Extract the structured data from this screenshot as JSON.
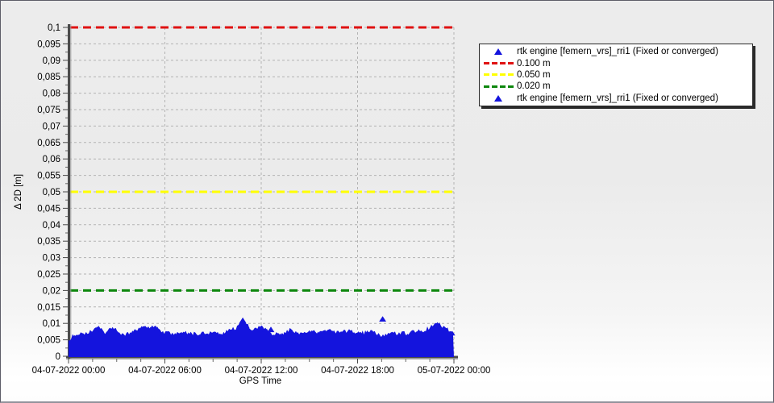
{
  "window": {
    "bg_top": "#ececec",
    "bg_bottom": "#ffffff",
    "border_color": "#5d5d68"
  },
  "chart_data": {
    "type": "scatter",
    "title": "",
    "xlabel": "GPS Time",
    "ylabel": "Δ 2D [m]",
    "ylim": [
      0,
      0.1
    ],
    "y_tick_step": 0.005,
    "grid": "dashed",
    "decimal_separator_axis": ",",
    "y_tick_labels": [
      "0",
      "0,005",
      "0,01",
      "0,015",
      "0,02",
      "0,025",
      "0,03",
      "0,035",
      "0,04",
      "0,045",
      "0,05",
      "0,055",
      "0,06",
      "0,065",
      "0,07",
      "0,075",
      "0,08",
      "0,085",
      "0,09",
      "0,095",
      "0,1"
    ],
    "x_tick_labels": [
      "04-07-2022 00:00",
      "04-07-2022 06:00",
      "04-07-2022 12:00",
      "04-07-2022 18:00",
      "05-07-2022 00:00"
    ],
    "thresholds": [
      {
        "label": "0.100 m",
        "value": 0.1,
        "color": "#e01212"
      },
      {
        "label": "0.050 m",
        "value": 0.05,
        "color": "#ffff00"
      },
      {
        "label": "0.020 m",
        "value": 0.02,
        "color": "#0c870c"
      }
    ],
    "series": [
      {
        "name": "rtk engine [femern_vrs]_rri1 (Fixed or converged)",
        "marker": "triangle",
        "color": "#1414dd",
        "band_range_m": [
          0,
          0.01
        ],
        "description": "dense noise band of fixed/converged RTK 2D deviations hugging 0–0.008 m for full 24 h",
        "envelope": [
          [
            0.0,
            0.0048
          ],
          [
            0.015,
            0.0066
          ],
          [
            0.05,
            0.007
          ],
          [
            0.075,
            0.0086
          ],
          [
            0.095,
            0.0074
          ],
          [
            0.115,
            0.0085
          ],
          [
            0.145,
            0.0064
          ],
          [
            0.175,
            0.008
          ],
          [
            0.195,
            0.0087
          ],
          [
            0.225,
            0.009
          ],
          [
            0.245,
            0.0072
          ],
          [
            0.275,
            0.0066
          ],
          [
            0.305,
            0.0071
          ],
          [
            0.335,
            0.0067
          ],
          [
            0.365,
            0.007
          ],
          [
            0.4,
            0.0068
          ],
          [
            0.435,
            0.0088
          ],
          [
            0.452,
            0.0106
          ],
          [
            0.475,
            0.0082
          ],
          [
            0.5,
            0.0088
          ],
          [
            0.53,
            0.0068
          ],
          [
            0.555,
            0.0066
          ],
          [
            0.575,
            0.0081
          ],
          [
            0.6,
            0.0069
          ],
          [
            0.625,
            0.0076
          ],
          [
            0.65,
            0.0071
          ],
          [
            0.675,
            0.0078
          ],
          [
            0.7,
            0.0073
          ],
          [
            0.73,
            0.0077
          ],
          [
            0.76,
            0.0072
          ],
          [
            0.79,
            0.0076
          ],
          [
            0.815,
            0.0062
          ],
          [
            0.84,
            0.0071
          ],
          [
            0.87,
            0.0069
          ],
          [
            0.9,
            0.0074
          ],
          [
            0.925,
            0.0081
          ],
          [
            0.955,
            0.01
          ],
          [
            0.975,
            0.009
          ],
          [
            1.0,
            0.0072
          ]
        ],
        "outliers": [
          [
            0.078,
            0.0093
          ],
          [
            0.452,
            0.0118
          ],
          [
            0.525,
            0.009
          ],
          [
            0.815,
            0.0122
          ],
          [
            0.957,
            0.0104
          ]
        ]
      }
    ]
  },
  "legend": {
    "entries": [
      {
        "marker": "triangle",
        "color": "#1414dd",
        "label": "rtk engine [femern_vrs]_rri1 (Fixed or converged)"
      },
      {
        "marker": "dashes",
        "color": "#e01212",
        "label": "0.100 m"
      },
      {
        "marker": "dashes",
        "color": "#ffff00",
        "label": "0.050 m"
      },
      {
        "marker": "dashes",
        "color": "#0c870c",
        "label": "0.020 m"
      },
      {
        "marker": "triangle",
        "color": "#1414dd",
        "label": "rtk engine [femern_vrs]_rri1 (Fixed or converged)"
      }
    ]
  }
}
